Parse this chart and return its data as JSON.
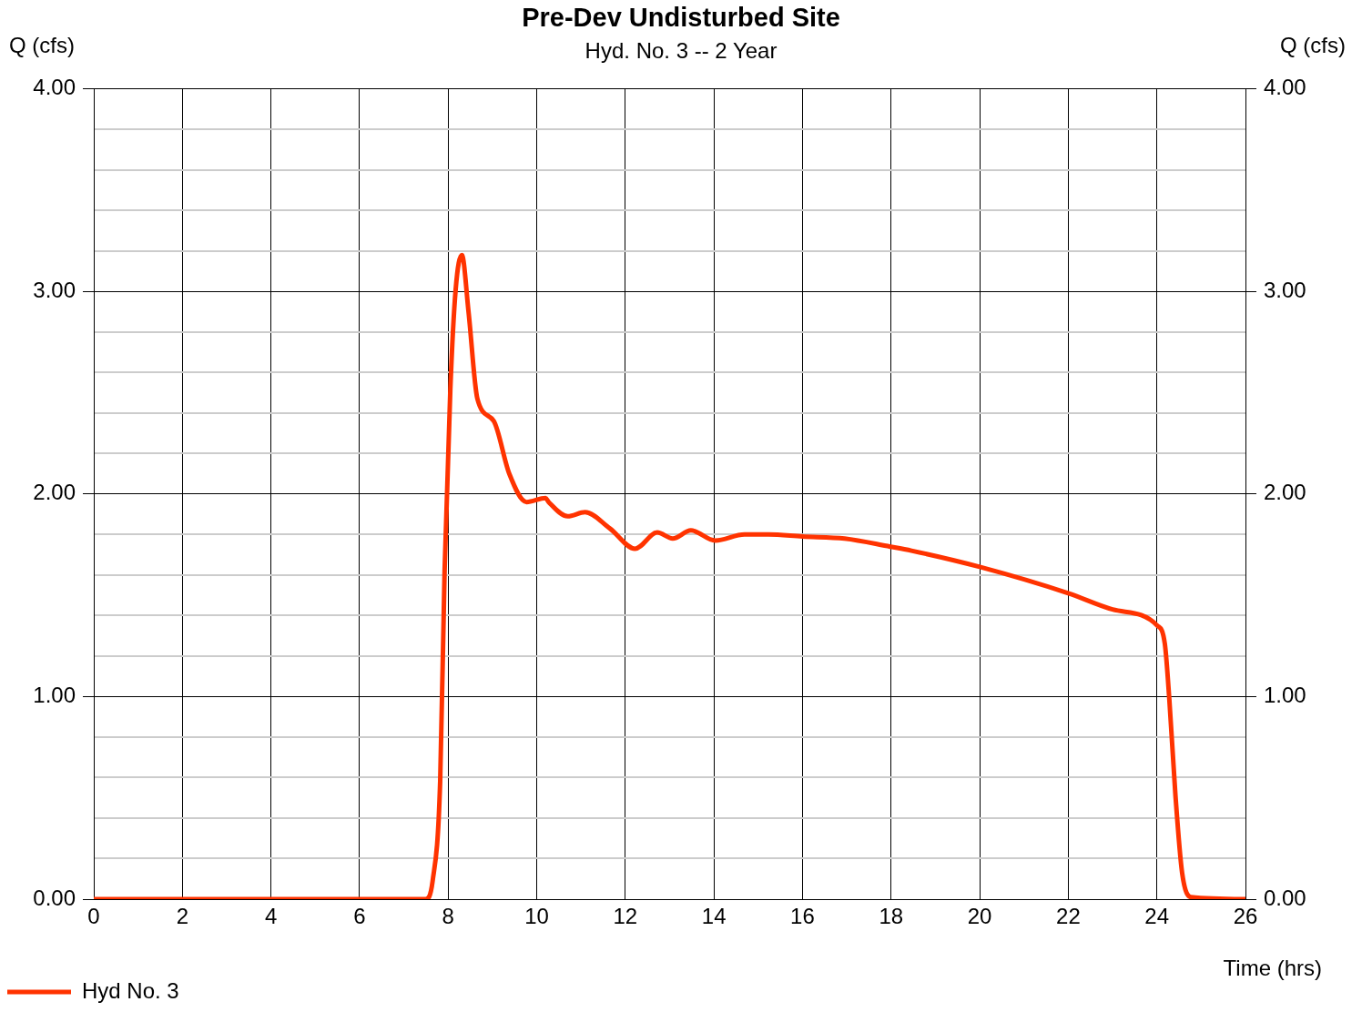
{
  "chart_data": {
    "type": "line",
    "title": "Pre-Dev Undisturbed Site",
    "subtitle": "Hyd. No. 3 -- 2 Year",
    "xlabel": "Time (hrs)",
    "ylabel": "Q (cfs)",
    "y2label": "Q (cfs)",
    "series": [
      {
        "name": "Hyd No. 3",
        "color": "#ff3300",
        "x": [
          0,
          7.49,
          7.65,
          7.82,
          7.92,
          8.05,
          8.17,
          8.31,
          8.46,
          8.66,
          9.03,
          9.38,
          9.77,
          10.2,
          10.27,
          10.7,
          11.09,
          11.65,
          12.22,
          12.72,
          13.07,
          13.48,
          14.03,
          14.69,
          15.23,
          16.0,
          16.95,
          17.98,
          18.46,
          20,
          22,
          23,
          24.01,
          24.18,
          24.28,
          24.42,
          24.57,
          24.77,
          26
        ],
        "values": [
          0,
          0,
          0.09,
          0.58,
          1.62,
          2.52,
          3.01,
          3.18,
          2.9,
          2.47,
          2.36,
          2.1,
          1.96,
          1.98,
          1.96,
          1.89,
          1.91,
          1.83,
          1.73,
          1.81,
          1.78,
          1.82,
          1.77,
          1.8,
          1.8,
          1.79,
          1.78,
          1.74,
          1.72,
          1.64,
          1.51,
          1.43,
          1.35,
          1.26,
          0.99,
          0.51,
          0.13,
          0.01,
          0
        ]
      }
    ],
    "xlim": [
      0,
      26
    ],
    "xticks": [
      0,
      2,
      4,
      6,
      8,
      10,
      12,
      14,
      16,
      18,
      20,
      22,
      24,
      26
    ],
    "ylim": [
      0,
      4
    ],
    "yticks": [
      {
        "value": 0,
        "label": "0.00"
      },
      {
        "value": 0.2,
        "label": null
      },
      {
        "value": 0.4,
        "label": null
      },
      {
        "value": 0.6,
        "label": null
      },
      {
        "value": 0.8,
        "label": null
      },
      {
        "value": 1,
        "label": "1.00"
      },
      {
        "value": 1.2,
        "label": null
      },
      {
        "value": 1.4,
        "label": null
      },
      {
        "value": 1.6,
        "label": null
      },
      {
        "value": 1.8,
        "label": null
      },
      {
        "value": 2,
        "label": "2.00"
      },
      {
        "value": 2.2,
        "label": null
      },
      {
        "value": 2.4,
        "label": null
      },
      {
        "value": 2.6,
        "label": null
      },
      {
        "value": 2.8,
        "label": null
      },
      {
        "value": 3,
        "label": "3.00"
      },
      {
        "value": 3.2,
        "label": null
      },
      {
        "value": 3.4,
        "label": null
      },
      {
        "value": 3.6,
        "label": null
      },
      {
        "value": 3.8,
        "label": null
      },
      {
        "value": 4,
        "label": "4.00"
      }
    ],
    "y2lim": [
      0,
      4
    ],
    "y2ticks": [
      {
        "value": 0,
        "label": "0.00"
      },
      {
        "value": 1,
        "label": "1.00"
      },
      {
        "value": 2,
        "label": "2.00"
      },
      {
        "value": 3,
        "label": "3.00"
      },
      {
        "value": 4,
        "label": "4.00"
      }
    ],
    "grid": true,
    "legend": "bottom left",
    "marker": "none",
    "line_style": "solid"
  }
}
